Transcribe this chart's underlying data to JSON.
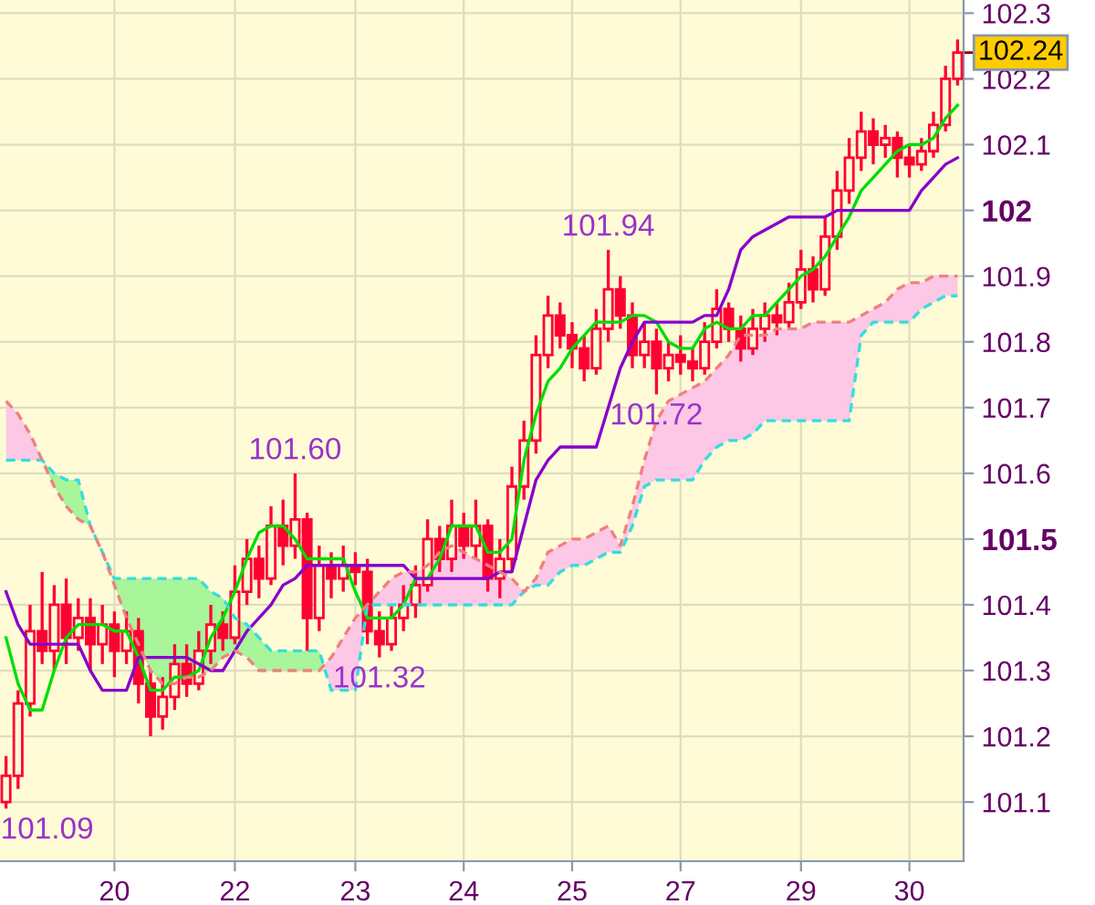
{
  "chart_data": {
    "type": "candlestick",
    "color": "#ff0033",
    "categories": [
      null,
      null,
      null,
      null,
      null,
      null,
      null,
      null,
      null,
      "20",
      null,
      null,
      null,
      null,
      null,
      null,
      null,
      null,
      null,
      "22",
      null,
      null,
      null,
      null,
      null,
      null,
      null,
      null,
      null,
      "23",
      null,
      null,
      null,
      null,
      null,
      null,
      null,
      null,
      "24",
      null,
      null,
      null,
      null,
      null,
      null,
      null,
      null,
      "25",
      null,
      null,
      null,
      null,
      null,
      null,
      null,
      null,
      "27",
      null,
      null,
      null,
      null,
      null,
      null,
      null,
      null,
      null,
      "29",
      null,
      null,
      null,
      null,
      null,
      null,
      null,
      null,
      "30",
      null,
      null,
      null,
      null
    ],
    "ohlc": [
      [
        101.1,
        101.17,
        101.09,
        101.14
      ],
      [
        101.14,
        101.27,
        101.12,
        101.25
      ],
      [
        101.25,
        101.4,
        101.23,
        101.36
      ],
      [
        101.36,
        101.45,
        101.31,
        101.33
      ],
      [
        101.33,
        101.43,
        101.3,
        101.4
      ],
      [
        101.4,
        101.44,
        101.31,
        101.35
      ],
      [
        101.35,
        101.41,
        101.33,
        101.38
      ],
      [
        101.38,
        101.41,
        101.3,
        101.34
      ],
      [
        101.34,
        101.4,
        101.31,
        101.37
      ],
      [
        101.37,
        101.39,
        101.29,
        101.33
      ],
      [
        101.33,
        101.39,
        101.31,
        101.36
      ],
      [
        101.36,
        101.38,
        101.25,
        101.28
      ],
      [
        101.28,
        101.3,
        101.2,
        101.23
      ],
      [
        101.23,
        101.29,
        101.21,
        101.26
      ],
      [
        101.26,
        101.34,
        101.24,
        101.31
      ],
      [
        101.31,
        101.34,
        101.26,
        101.28
      ],
      [
        101.28,
        101.36,
        101.27,
        101.33
      ],
      [
        101.33,
        101.4,
        101.31,
        101.37
      ],
      [
        101.37,
        101.39,
        101.33,
        101.35
      ],
      [
        101.35,
        101.46,
        101.34,
        101.42
      ],
      [
        101.42,
        101.5,
        101.4,
        101.47
      ],
      [
        101.47,
        101.49,
        101.41,
        101.44
      ],
      [
        101.44,
        101.55,
        101.43,
        101.52
      ],
      [
        101.52,
        101.56,
        101.46,
        101.49
      ],
      [
        101.49,
        101.6,
        101.47,
        101.53
      ],
      [
        101.53,
        101.54,
        101.33,
        101.38
      ],
      [
        101.38,
        101.49,
        101.36,
        101.46
      ],
      [
        101.46,
        101.48,
        101.41,
        101.44
      ],
      [
        101.44,
        101.49,
        101.42,
        101.46
      ],
      [
        101.46,
        101.48,
        101.43,
        101.45
      ],
      [
        101.45,
        101.47,
        101.34,
        101.36
      ],
      [
        101.36,
        101.39,
        101.32,
        101.34
      ],
      [
        101.34,
        101.4,
        101.33,
        101.38
      ],
      [
        101.38,
        101.43,
        101.36,
        101.4
      ],
      [
        101.4,
        101.46,
        101.38,
        101.43
      ],
      [
        101.43,
        101.53,
        101.42,
        101.5
      ],
      [
        101.5,
        101.52,
        101.45,
        101.47
      ],
      [
        101.47,
        101.56,
        101.45,
        101.52
      ],
      [
        101.52,
        101.54,
        101.47,
        101.49
      ],
      [
        101.49,
        101.56,
        101.47,
        101.52
      ],
      [
        101.52,
        101.53,
        101.42,
        101.44
      ],
      [
        101.44,
        101.5,
        101.41,
        101.47
      ],
      [
        101.47,
        101.61,
        101.45,
        101.58
      ],
      [
        101.58,
        101.68,
        101.56,
        101.65
      ],
      [
        101.65,
        101.81,
        101.63,
        101.78
      ],
      [
        101.78,
        101.87,
        101.76,
        101.84
      ],
      [
        101.84,
        101.86,
        101.79,
        101.81
      ],
      [
        101.81,
        101.83,
        101.76,
        101.79
      ],
      [
        101.79,
        101.81,
        101.74,
        101.76
      ],
      [
        101.76,
        101.85,
        101.75,
        101.82
      ],
      [
        101.82,
        101.94,
        101.8,
        101.88
      ],
      [
        101.88,
        101.9,
        101.82,
        101.84
      ],
      [
        101.84,
        101.86,
        101.76,
        101.78
      ],
      [
        101.78,
        101.83,
        101.76,
        101.8
      ],
      [
        101.8,
        101.82,
        101.72,
        101.76
      ],
      [
        101.76,
        101.8,
        101.74,
        101.78
      ],
      [
        101.78,
        101.81,
        101.75,
        101.77
      ],
      [
        101.77,
        101.79,
        101.74,
        101.76
      ],
      [
        101.76,
        101.83,
        101.75,
        101.8
      ],
      [
        101.8,
        101.88,
        101.79,
        101.85
      ],
      [
        101.85,
        101.86,
        101.8,
        101.82
      ],
      [
        101.82,
        101.84,
        101.77,
        101.79
      ],
      [
        101.79,
        101.85,
        101.78,
        101.82
      ],
      [
        101.82,
        101.86,
        101.8,
        101.84
      ],
      [
        101.84,
        101.86,
        101.81,
        101.83
      ],
      [
        101.83,
        101.89,
        101.82,
        101.86
      ],
      [
        101.86,
        101.94,
        101.85,
        101.91
      ],
      [
        101.91,
        101.93,
        101.86,
        101.88
      ],
      [
        101.88,
        101.99,
        101.87,
        101.96
      ],
      [
        101.96,
        102.06,
        101.94,
        102.03
      ],
      [
        102.03,
        102.11,
        102.01,
        102.08
      ],
      [
        102.08,
        102.15,
        102.06,
        102.12
      ],
      [
        102.12,
        102.14,
        102.07,
        102.1
      ],
      [
        102.1,
        102.13,
        102.08,
        102.11
      ],
      [
        102.11,
        102.12,
        102.05,
        102.08
      ],
      [
        102.08,
        102.1,
        102.05,
        102.07
      ],
      [
        102.07,
        102.11,
        102.06,
        102.09
      ],
      [
        102.09,
        102.15,
        102.08,
        102.13
      ],
      [
        102.13,
        102.22,
        102.12,
        102.2
      ],
      [
        102.2,
        102.26,
        102.19,
        102.24
      ]
    ],
    "series": [
      {
        "type": "line",
        "color": "#00dd00",
        "values": [
          101.35,
          101.28,
          101.24,
          101.24,
          101.3,
          101.35,
          101.37,
          101.37,
          101.37,
          101.36,
          101.36,
          101.32,
          101.27,
          101.27,
          101.29,
          101.29,
          101.3,
          101.35,
          101.38,
          101.42,
          101.47,
          101.51,
          101.52,
          101.52,
          101.5,
          101.47,
          101.47,
          101.47,
          101.47,
          101.42,
          101.38,
          101.38,
          101.38,
          101.4,
          101.44,
          101.44,
          101.47,
          101.52,
          101.52,
          101.52,
          101.48,
          101.48,
          101.5,
          101.62,
          101.69,
          101.74,
          101.76,
          101.79,
          101.81,
          101.83,
          101.83,
          101.83,
          101.84,
          101.84,
          101.83,
          101.8,
          101.79,
          101.79,
          101.82,
          101.83,
          101.82,
          101.82,
          101.84,
          101.84,
          101.86,
          101.88,
          101.9,
          101.91,
          101.93,
          101.96,
          101.99,
          102.03,
          102.05,
          102.07,
          102.09,
          102.1,
          102.1,
          102.11,
          102.14,
          102.16
        ]
      },
      {
        "type": "line",
        "color": "#8800cc",
        "values": [
          101.42,
          101.37,
          101.34,
          101.34,
          101.34,
          101.34,
          101.34,
          101.3,
          101.27,
          101.27,
          101.27,
          101.32,
          101.32,
          101.32,
          101.32,
          101.32,
          101.31,
          101.3,
          101.3,
          101.33,
          101.36,
          101.38,
          101.4,
          101.43,
          101.44,
          101.46,
          101.46,
          101.46,
          101.46,
          101.46,
          101.46,
          101.46,
          101.46,
          101.46,
          101.44,
          101.44,
          101.44,
          101.44,
          101.44,
          101.44,
          101.44,
          101.45,
          101.45,
          101.52,
          101.59,
          101.62,
          101.64,
          101.64,
          101.64,
          101.64,
          101.7,
          101.76,
          101.8,
          101.83,
          101.83,
          101.83,
          101.83,
          101.83,
          101.84,
          101.84,
          101.88,
          101.94,
          101.96,
          101.97,
          101.98,
          101.99,
          101.99,
          101.99,
          101.99,
          102.0,
          102.0,
          102.0,
          102.0,
          102.0,
          102.0,
          102.0,
          102.03,
          102.05,
          102.07,
          102.08
        ]
      },
      {
        "type": "line",
        "color": "#33dddd",
        "line_style": "dashed",
        "values": [
          101.62,
          101.62,
          101.62,
          101.62,
          101.6,
          101.59,
          101.59,
          101.52,
          101.48,
          101.44,
          101.44,
          101.44,
          101.44,
          101.44,
          101.44,
          101.44,
          101.44,
          101.42,
          101.41,
          101.38,
          101.37,
          101.35,
          101.33,
          101.33,
          101.33,
          101.33,
          101.33,
          101.27,
          101.27,
          101.27,
          101.4,
          101.4,
          101.4,
          101.4,
          101.4,
          101.4,
          101.4,
          101.4,
          101.4,
          101.4,
          101.4,
          101.4,
          101.4,
          101.42,
          101.43,
          101.43,
          101.45,
          101.46,
          101.46,
          101.47,
          101.48,
          101.48,
          101.52,
          101.58,
          101.59,
          101.59,
          101.59,
          101.59,
          101.62,
          101.64,
          101.65,
          101.65,
          101.66,
          101.68,
          101.68,
          101.68,
          101.68,
          101.68,
          101.68,
          101.68,
          101.68,
          101.81,
          101.83,
          101.83,
          101.83,
          101.83,
          101.85,
          101.86,
          101.87,
          101.87
        ]
      },
      {
        "type": "line",
        "color": "#f08080",
        "line_style": "dashed",
        "values": [
          101.71,
          101.69,
          101.66,
          101.62,
          101.58,
          101.55,
          101.53,
          101.52,
          101.48,
          101.43,
          101.38,
          101.34,
          101.3,
          101.28,
          101.28,
          101.29,
          101.29,
          101.3,
          101.32,
          101.33,
          101.32,
          101.3,
          101.3,
          101.3,
          101.3,
          101.3,
          101.3,
          101.32,
          101.35,
          101.38,
          101.4,
          101.42,
          101.44,
          101.45,
          101.45,
          101.46,
          101.48,
          101.49,
          101.48,
          101.47,
          101.46,
          101.45,
          101.44,
          101.42,
          101.44,
          101.48,
          101.49,
          101.5,
          101.5,
          101.51,
          101.52,
          101.49,
          101.55,
          101.62,
          101.68,
          101.71,
          101.72,
          101.73,
          101.74,
          101.76,
          101.78,
          101.81,
          101.81,
          101.81,
          101.82,
          101.82,
          101.82,
          101.83,
          101.83,
          101.83,
          101.83,
          101.84,
          101.85,
          101.86,
          101.88,
          101.89,
          101.89,
          101.9,
          101.9,
          101.9
        ]
      }
    ],
    "ylim": [
      101.01,
      102.32
    ],
    "yticks": [
      101.1,
      101.2,
      101.3,
      101.4,
      101.5,
      101.6,
      101.7,
      101.8,
      101.9,
      102,
      102.1,
      102.2,
      102.3
    ],
    "annotations": [
      "102.24",
      "101.09",
      "101.60",
      "101.32",
      "101.94",
      "101.72"
    ],
    "grid": true
  }
}
